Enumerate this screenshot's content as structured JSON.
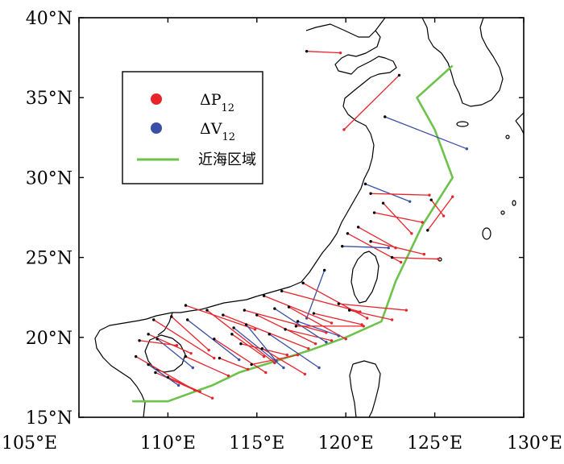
{
  "map": {
    "lon_range": [
      105,
      130
    ],
    "lat_range": [
      15,
      40
    ],
    "x_ticks": [
      {
        "value": 105,
        "label": "105°E"
      },
      {
        "value": 110,
        "label": "110°E"
      },
      {
        "value": 115,
        "label": "115°E"
      },
      {
        "value": 120,
        "label": "120°E"
      },
      {
        "value": 125,
        "label": "125°E"
      },
      {
        "value": 130,
        "label": "130°E"
      }
    ],
    "y_ticks": [
      {
        "value": 15,
        "label": "15°N"
      },
      {
        "value": 20,
        "label": "20°N"
      },
      {
        "value": 25,
        "label": "25°N"
      },
      {
        "value": 30,
        "label": "30°N"
      },
      {
        "value": 35,
        "label": "35°N"
      },
      {
        "value": 40,
        "label": "40°N"
      }
    ]
  },
  "legend": {
    "items": [
      {
        "label_main": "ΔP",
        "label_sub": "12",
        "color": "#e8242b",
        "symbol": "dot"
      },
      {
        "label_main": "ΔV",
        "label_sub": "12",
        "color": "#3a4fa6",
        "symbol": "dot"
      },
      {
        "label": "近海区域",
        "color": "#6cc24a",
        "symbol": "line"
      }
    ]
  },
  "colors": {
    "coastline": "#000000",
    "delta_p": "#e8242b",
    "delta_v": "#3a4fa6",
    "offshore_boundary": "#6cc24a",
    "start_point": "#000000"
  },
  "offshore_boundary": [
    [
      108.0,
      16.0
    ],
    [
      110.0,
      16.0
    ],
    [
      112.5,
      17.0
    ],
    [
      114.0,
      17.8
    ],
    [
      116.0,
      18.5
    ],
    [
      118.0,
      19.2
    ],
    [
      120.0,
      20.0
    ],
    [
      122.0,
      21.0
    ],
    [
      122.8,
      23.5
    ],
    [
      124.3,
      27.0
    ],
    [
      126.0,
      30.0
    ],
    [
      125.0,
      33.0
    ],
    [
      124.0,
      35.0
    ],
    [
      126.0,
      37.0
    ]
  ],
  "displacements": [
    {
      "type": "P",
      "from": [
        117.8,
        37.9
      ],
      "to": [
        119.7,
        37.8
      ]
    },
    {
      "type": "P",
      "from": [
        123.0,
        36.4
      ],
      "to": [
        119.9,
        33.0
      ]
    },
    {
      "type": "V",
      "from": [
        122.2,
        33.8
      ],
      "to": [
        126.8,
        31.8
      ]
    },
    {
      "type": "V",
      "from": [
        121.1,
        29.6
      ],
      "to": [
        123.6,
        28.5
      ]
    },
    {
      "type": "P",
      "from": [
        121.4,
        29.0
      ],
      "to": [
        124.7,
        28.9
      ]
    },
    {
      "type": "P",
      "from": [
        124.8,
        28.6
      ],
      "to": [
        125.5,
        27.6
      ]
    },
    {
      "type": "P",
      "from": [
        122.1,
        28.4
      ],
      "to": [
        123.7,
        26.5
      ]
    },
    {
      "type": "P",
      "from": [
        121.6,
        27.8
      ],
      "to": [
        124.3,
        27.2
      ]
    },
    {
      "type": "P",
      "from": [
        120.7,
        26.9
      ],
      "to": [
        122.8,
        25.6
      ]
    },
    {
      "type": "P",
      "from": [
        120.1,
        26.5
      ],
      "to": [
        123.1,
        24.7
      ]
    },
    {
      "type": "V",
      "from": [
        119.8,
        25.7
      ],
      "to": [
        122.4,
        25.6
      ]
    },
    {
      "type": "P",
      "from": [
        121.4,
        26.0
      ],
      "to": [
        124.4,
        25.2
      ]
    },
    {
      "type": "P",
      "from": [
        122.6,
        25.0
      ],
      "to": [
        125.2,
        24.9
      ]
    },
    {
      "type": "P",
      "from": [
        124.6,
        26.7
      ],
      "to": [
        126.0,
        28.8
      ]
    },
    {
      "type": "V",
      "from": [
        118.8,
        24.2
      ],
      "to": [
        117.8,
        21.2
      ]
    },
    {
      "type": "P",
      "from": [
        117.6,
        23.4
      ],
      "to": [
        121.2,
        21.2
      ]
    },
    {
      "type": "P",
      "from": [
        116.4,
        22.9
      ],
      "to": [
        120.8,
        21.6
      ]
    },
    {
      "type": "P",
      "from": [
        115.4,
        22.6
      ],
      "to": [
        119.2,
        20.9
      ]
    },
    {
      "type": "P",
      "from": [
        119.6,
        22.1
      ],
      "to": [
        123.4,
        21.7
      ]
    },
    {
      "type": "P",
      "from": [
        120.2,
        21.7
      ],
      "to": [
        122.6,
        21.1
      ]
    },
    {
      "type": "P",
      "from": [
        116.8,
        21.9
      ],
      "to": [
        120.0,
        19.9
      ]
    },
    {
      "type": "P",
      "from": [
        114.3,
        21.7
      ],
      "to": [
        118.9,
        20.3
      ]
    },
    {
      "type": "P",
      "from": [
        113.1,
        21.4
      ],
      "to": [
        117.9,
        19.3
      ]
    },
    {
      "type": "P",
      "from": [
        112.2,
        21.7
      ],
      "to": [
        116.0,
        18.4
      ]
    },
    {
      "type": "V",
      "from": [
        111.1,
        21.1
      ],
      "to": [
        114.0,
        18.6
      ]
    },
    {
      "type": "P",
      "from": [
        110.2,
        21.3
      ],
      "to": [
        112.3,
        19.2
      ]
    },
    {
      "type": "P",
      "from": [
        111.0,
        22.0
      ],
      "to": [
        114.9,
        20.5
      ]
    },
    {
      "type": "P",
      "from": [
        109.2,
        21.1
      ],
      "to": [
        112.6,
        18.7
      ]
    },
    {
      "type": "P",
      "from": [
        108.9,
        20.2
      ],
      "to": [
        111.3,
        19.0
      ]
    },
    {
      "type": "V",
      "from": [
        109.4,
        19.9
      ],
      "to": [
        111.4,
        18.1
      ]
    },
    {
      "type": "P",
      "from": [
        108.4,
        19.8
      ],
      "to": [
        110.5,
        19.5
      ]
    },
    {
      "type": "P",
      "from": [
        108.2,
        18.8
      ],
      "to": [
        111.5,
        16.7
      ]
    },
    {
      "type": "P",
      "from": [
        109.3,
        17.8
      ],
      "to": [
        112.5,
        16.2
      ]
    },
    {
      "type": "V",
      "from": [
        108.9,
        18.3
      ],
      "to": [
        110.6,
        17.0
      ]
    },
    {
      "type": "P",
      "from": [
        110.0,
        17.5
      ],
      "to": [
        111.8,
        16.6
      ]
    },
    {
      "type": "P",
      "from": [
        111.0,
        18.8
      ],
      "to": [
        113.4,
        17.6
      ]
    },
    {
      "type": "P",
      "from": [
        112.6,
        19.9
      ],
      "to": [
        115.5,
        17.8
      ]
    },
    {
      "type": "V",
      "from": [
        113.7,
        20.6
      ],
      "to": [
        116.5,
        18.1
      ]
    },
    {
      "type": "P",
      "from": [
        114.1,
        19.6
      ],
      "to": [
        116.7,
        18.9
      ]
    },
    {
      "type": "P",
      "from": [
        115.0,
        21.4
      ],
      "to": [
        118.3,
        19.6
      ]
    },
    {
      "type": "V",
      "from": [
        115.7,
        20.2
      ],
      "to": [
        118.5,
        18.1
      ]
    },
    {
      "type": "P",
      "from": [
        116.6,
        20.5
      ],
      "to": [
        119.2,
        19.8
      ]
    },
    {
      "type": "V",
      "from": [
        117.3,
        21.0
      ],
      "to": [
        119.6,
        20.1
      ]
    },
    {
      "type": "P",
      "from": [
        118.2,
        21.5
      ],
      "to": [
        120.9,
        20.8
      ]
    },
    {
      "type": "V",
      "from": [
        116.0,
        21.8
      ],
      "to": [
        118.9,
        19.7
      ]
    },
    {
      "type": "P",
      "from": [
        113.6,
        20.2
      ],
      "to": [
        115.4,
        18.8
      ]
    },
    {
      "type": "P",
      "from": [
        112.9,
        18.7
      ],
      "to": [
        114.5,
        18.0
      ]
    },
    {
      "type": "P",
      "from": [
        114.7,
        18.3
      ],
      "to": [
        117.3,
        18.9
      ]
    },
    {
      "type": "P",
      "from": [
        115.3,
        19.3
      ],
      "to": [
        117.7,
        17.7
      ]
    },
    {
      "type": "V",
      "from": [
        114.4,
        20.8
      ],
      "to": [
        116.1,
        18.5
      ]
    },
    {
      "type": "P",
      "from": [
        117.2,
        20.7
      ],
      "to": [
        121.0,
        20.7
      ]
    }
  ]
}
